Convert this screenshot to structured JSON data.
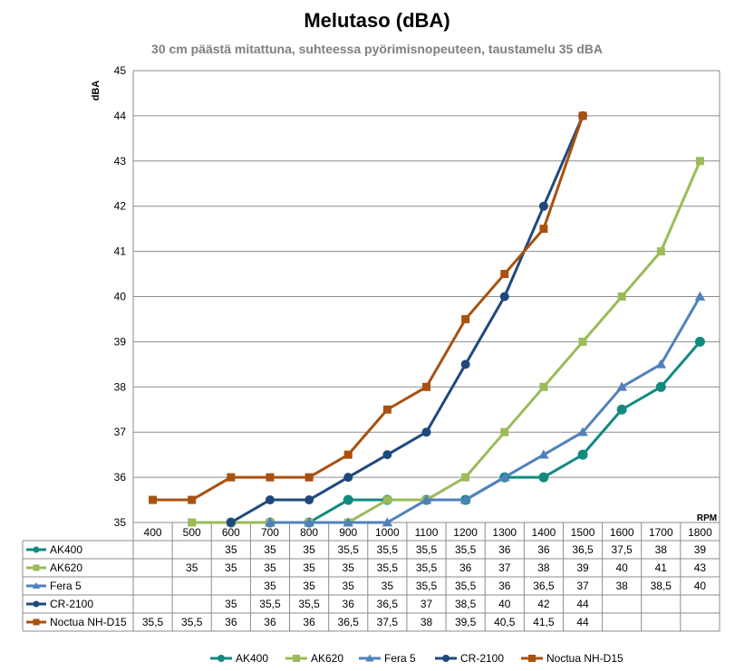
{
  "chart_data": {
    "type": "line",
    "title": "Melutaso (dBA)",
    "subtitle": "30 cm päästä mitattuna, suhteessa pyörimisnopeuteen, taustamelu 35 dBA",
    "ylabel": "dBA",
    "xlabel": "RPM",
    "ylim": [
      35,
      45
    ],
    "yticks": [
      "35",
      "36",
      "37",
      "38",
      "39",
      "40",
      "41",
      "42",
      "43",
      "44",
      "45"
    ],
    "categories": [
      "400",
      "500",
      "600",
      "700",
      "800",
      "900",
      "1000",
      "1100",
      "1200",
      "1300",
      "1400",
      "1500",
      "1600",
      "1700",
      "1800"
    ],
    "grid": true,
    "legend_position": "bottom",
    "series": [
      {
        "name": "AK400",
        "color": "#128a80",
        "marker": "circle",
        "values": [
          null,
          null,
          35,
          35,
          35,
          35.5,
          35.5,
          35.5,
          35.5,
          36,
          36,
          36.5,
          37.5,
          38,
          39
        ],
        "labels": [
          "",
          "",
          "35",
          "35",
          "35",
          "35,5",
          "35,5",
          "35,5",
          "35,5",
          "36",
          "36",
          "36,5",
          "37,5",
          "38",
          "39"
        ]
      },
      {
        "name": "AK620",
        "color": "#9bbb59",
        "marker": "square",
        "values": [
          null,
          35,
          35,
          35,
          35,
          35,
          35.5,
          35.5,
          36,
          37,
          38,
          39,
          40,
          41,
          43
        ],
        "labels": [
          "",
          "35",
          "35",
          "35",
          "35",
          "35",
          "35,5",
          "35,5",
          "36",
          "37",
          "38",
          "39",
          "40",
          "41",
          "43"
        ]
      },
      {
        "name": "Fera 5",
        "color": "#4f81bd",
        "marker": "triangle",
        "values": [
          null,
          null,
          null,
          35,
          35,
          35,
          35,
          35.5,
          35.5,
          36,
          36.5,
          37,
          38,
          38.5,
          40
        ],
        "labels": [
          "",
          "",
          "",
          "35",
          "35",
          "35",
          "35",
          "35,5",
          "35,5",
          "36",
          "36,5",
          "37",
          "38",
          "38,5",
          "40"
        ]
      },
      {
        "name": "CR-2100",
        "color": "#1f497d",
        "marker": "circle",
        "values": [
          null,
          null,
          35,
          35.5,
          35.5,
          36,
          36.5,
          37,
          38.5,
          40,
          42,
          44,
          null,
          null,
          null
        ],
        "labels": [
          "",
          "",
          "35",
          "35,5",
          "35,5",
          "36",
          "36,5",
          "37",
          "38,5",
          "40",
          "42",
          "44",
          "",
          "",
          ""
        ]
      },
      {
        "name": "Noctua NH-D15",
        "color": "#a9510f",
        "marker": "square",
        "values": [
          35.5,
          35.5,
          36,
          36,
          36,
          36.5,
          37.5,
          38,
          39.5,
          40.5,
          41.5,
          44,
          null,
          null,
          null
        ],
        "labels": [
          "35,5",
          "35,5",
          "36",
          "36",
          "36",
          "36,5",
          "37,5",
          "38",
          "39,5",
          "40,5",
          "41,5",
          "44",
          "",
          "",
          ""
        ]
      }
    ]
  }
}
